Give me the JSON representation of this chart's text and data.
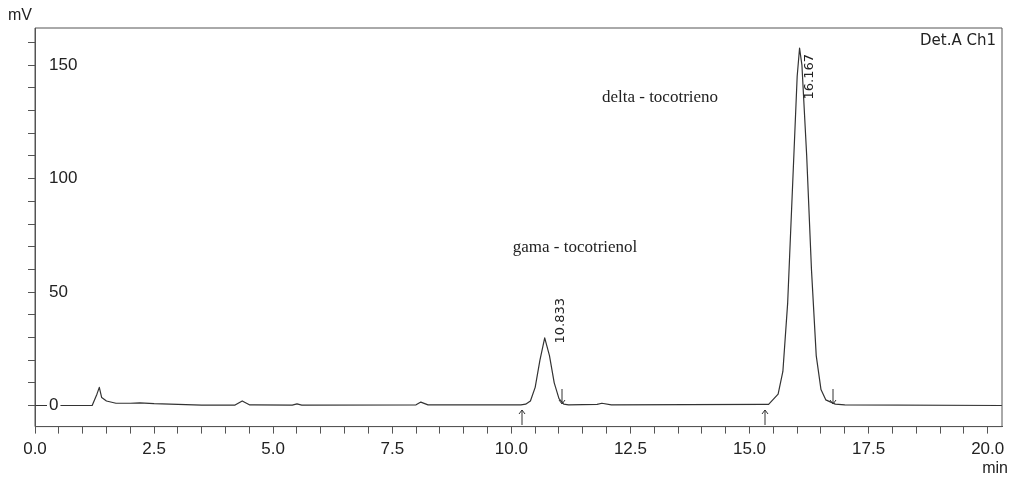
{
  "chart_data": {
    "type": "line",
    "xlabel": "min",
    "ylabel": "mV",
    "x": [
      0,
      1.2,
      1.3,
      1.35,
      1.4,
      1.5,
      1.7,
      2.0,
      2.2,
      2.5,
      3.0,
      3.5,
      4.2,
      4.35,
      4.5,
      5.4,
      5.5,
      5.6,
      8.0,
      8.1,
      8.25,
      10.2,
      10.3,
      10.4,
      10.5,
      10.6,
      10.7,
      10.8,
      10.9,
      11.0,
      11.1,
      11.2,
      11.8,
      11.9,
      12.1,
      15.4,
      15.6,
      15.7,
      15.8,
      15.9,
      16.0,
      16.05,
      16.1,
      16.2,
      16.3,
      16.4,
      16.5,
      16.6,
      16.8,
      17.0,
      20.3
    ],
    "series": [
      {
        "color": "#333333",
        "values": [
          0,
          0,
          5,
          8,
          3.5,
          2,
          1,
          1,
          1.2,
          0.8,
          0.5,
          0.2,
          0.2,
          2,
          0.3,
          0.2,
          0.7,
          0.2,
          0.3,
          1.5,
          0.3,
          0.3,
          0.6,
          2,
          8,
          20,
          29.8,
          22,
          10,
          3,
          0.6,
          0.3,
          0.5,
          1,
          0.3,
          0.5,
          5,
          15,
          45,
          95,
          145,
          157.5,
          150,
          110,
          60,
          22,
          7,
          2.5,
          0.6,
          0.3,
          0
        ]
      }
    ],
    "xlim": [
      0,
      20.3
    ],
    "xticks": [
      {
        "value": 0,
        "label": "0.0"
      },
      {
        "value": 0.5,
        "label": null
      },
      {
        "value": 1,
        "label": null
      },
      {
        "value": 1.5,
        "label": null
      },
      {
        "value": 2,
        "label": null
      },
      {
        "value": 2.5,
        "label": "2.5"
      },
      {
        "value": 3,
        "label": null
      },
      {
        "value": 3.5,
        "label": null
      },
      {
        "value": 4,
        "label": null
      },
      {
        "value": 4.5,
        "label": null
      },
      {
        "value": 5,
        "label": "5.0"
      },
      {
        "value": 5.5,
        "label": null
      },
      {
        "value": 6,
        "label": null
      },
      {
        "value": 6.5,
        "label": null
      },
      {
        "value": 7,
        "label": null
      },
      {
        "value": 7.5,
        "label": "7.5"
      },
      {
        "value": 8,
        "label": null
      },
      {
        "value": 8.5,
        "label": null
      },
      {
        "value": 9,
        "label": null
      },
      {
        "value": 9.5,
        "label": null
      },
      {
        "value": 10,
        "label": "10.0"
      },
      {
        "value": 10.5,
        "label": null
      },
      {
        "value": 11,
        "label": null
      },
      {
        "value": 11.5,
        "label": null
      },
      {
        "value": 12,
        "label": null
      },
      {
        "value": 12.5,
        "label": "12.5"
      },
      {
        "value": 13,
        "label": null
      },
      {
        "value": 13.5,
        "label": null
      },
      {
        "value": 14,
        "label": null
      },
      {
        "value": 14.5,
        "label": null
      },
      {
        "value": 15,
        "label": "15.0"
      },
      {
        "value": 15.5,
        "label": null
      },
      {
        "value": 16,
        "label": null
      },
      {
        "value": 16.5,
        "label": null
      },
      {
        "value": 17,
        "label": null
      },
      {
        "value": 17.5,
        "label": "17.5"
      },
      {
        "value": 18,
        "label": null
      },
      {
        "value": 18.5,
        "label": null
      },
      {
        "value": 19,
        "label": null
      },
      {
        "value": 19.5,
        "label": null
      },
      {
        "value": 20,
        "label": "20.0"
      }
    ],
    "ylim": [
      -9.3,
      166.4
    ],
    "yticks": [
      0,
      {
        "value": 10,
        "label": null
      },
      {
        "value": 20,
        "label": null
      },
      {
        "value": 30,
        "label": null
      },
      {
        "value": 40,
        "label": null
      },
      50,
      {
        "value": 60,
        "label": null
      },
      {
        "value": 70,
        "label": null
      },
      {
        "value": 80,
        "label": null
      },
      {
        "value": 90,
        "label": null
      },
      100,
      {
        "value": 110,
        "label": null
      },
      {
        "value": 120,
        "label": null
      },
      {
        "value": 130,
        "label": null
      },
      {
        "value": 140,
        "label": null
      },
      150,
      {
        "value": 160,
        "label": null
      }
    ],
    "grid": false,
    "legend": false,
    "marker": "none",
    "line_style": "solid",
    "annotations": [
      "Det.A Ch1",
      "gama - tocotrienol",
      "delta - tocotrieno",
      "10.833",
      "16.167"
    ]
  }
}
